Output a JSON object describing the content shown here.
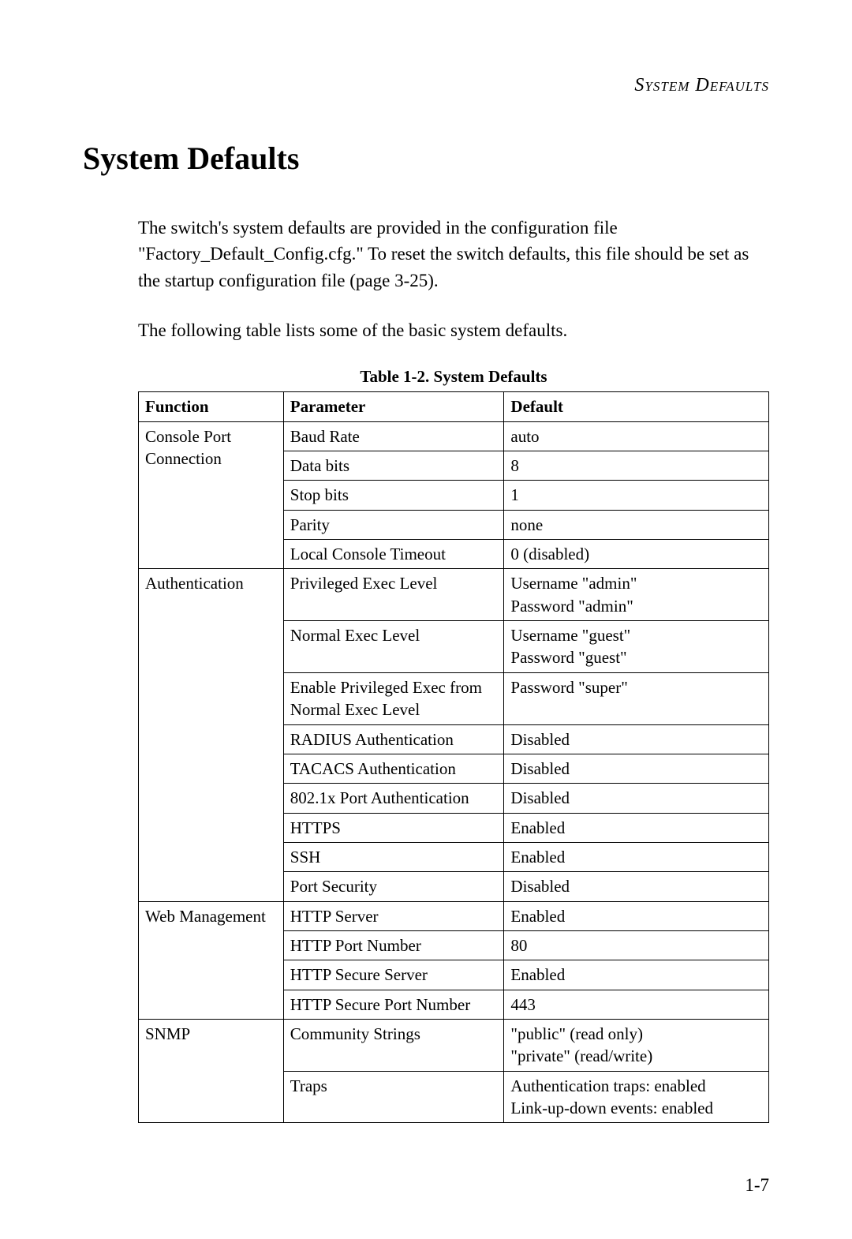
{
  "header": {
    "running_title": "System Defaults"
  },
  "heading": "System Defaults",
  "paragraphs": {
    "p1": "The switch's system defaults are provided in the configuration file \"Factory_Default_Config.cfg.\" To reset the switch defaults, this file should be set as the startup configuration file (page 3-25).",
    "p2": "The following table lists some of the basic system defaults."
  },
  "table": {
    "caption": "Table 1-2.  System Defaults",
    "columns": {
      "c1": "Function",
      "c2": "Parameter",
      "c3": "Default"
    },
    "column_widths_pct": [
      23,
      35,
      42
    ],
    "font_size_pt": 16,
    "border_color": "#000000",
    "groups": {
      "console": {
        "label": "Console Port Connection",
        "rows": {
          "r0": {
            "param": "Baud Rate",
            "def": "auto"
          },
          "r1": {
            "param": "Data bits",
            "def": "8"
          },
          "r2": {
            "param": "Stop bits",
            "def": "1"
          },
          "r3": {
            "param": "Parity",
            "def": "none"
          },
          "r4": {
            "param": "Local Console Timeout",
            "def": "0 (disabled)"
          }
        }
      },
      "auth": {
        "label": "Authentication",
        "rows": {
          "r0": {
            "param": "Privileged Exec Level",
            "def": "Username \"admin\"\nPassword \"admin\""
          },
          "r1": {
            "param": "Normal Exec Level",
            "def": "Username \"guest\"\nPassword \"guest\""
          },
          "r2": {
            "param": "Enable Privileged Exec from Normal Exec Level",
            "def": "Password \"super\""
          },
          "r3": {
            "param": "RADIUS Authentication",
            "def": "Disabled"
          },
          "r4": {
            "param": "TACACS Authentication",
            "def": "Disabled"
          },
          "r5": {
            "param": "802.1x Port Authentication",
            "def": "Disabled"
          },
          "r6": {
            "param": "HTTPS",
            "def": "Enabled"
          },
          "r7": {
            "param": "SSH",
            "def": "Enabled"
          },
          "r8": {
            "param": "Port Security",
            "def": "Disabled"
          }
        }
      },
      "web": {
        "label": "Web Management",
        "rows": {
          "r0": {
            "param": "HTTP Server",
            "def": "Enabled"
          },
          "r1": {
            "param": "HTTP Port Number",
            "def": "80"
          },
          "r2": {
            "param": "HTTP Secure Server",
            "def": "Enabled"
          },
          "r3": {
            "param": "HTTP Secure Port Number",
            "def": "443"
          }
        }
      },
      "snmp": {
        "label": "SNMP",
        "rows": {
          "r0": {
            "param": "Community Strings",
            "def": "\"public\" (read only)\n\"private\" (read/write)"
          },
          "r1": {
            "param": "Traps",
            "def": "Authentication traps: enabled\nLink-up-down events: enabled"
          }
        }
      }
    }
  },
  "page_number": "1-7",
  "colors": {
    "text": "#000000",
    "background": "#ffffff"
  },
  "typography": {
    "body_family": "Garamond",
    "body_size_pt": 17,
    "heading_size_pt": 30
  }
}
